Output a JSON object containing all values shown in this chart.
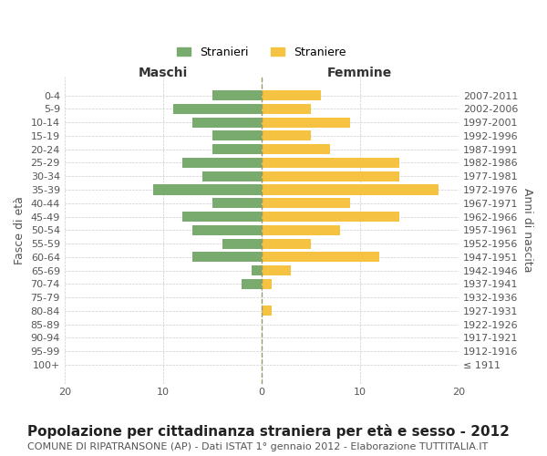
{
  "age_groups": [
    "100+",
    "95-99",
    "90-94",
    "85-89",
    "80-84",
    "75-79",
    "70-74",
    "65-69",
    "60-64",
    "55-59",
    "50-54",
    "45-49",
    "40-44",
    "35-39",
    "30-34",
    "25-29",
    "20-24",
    "15-19",
    "10-14",
    "5-9",
    "0-4"
  ],
  "birth_years": [
    "≤ 1911",
    "1912-1916",
    "1917-1921",
    "1922-1926",
    "1927-1931",
    "1932-1936",
    "1937-1941",
    "1942-1946",
    "1947-1951",
    "1952-1956",
    "1957-1961",
    "1962-1966",
    "1967-1971",
    "1972-1976",
    "1977-1981",
    "1982-1986",
    "1987-1991",
    "1992-1996",
    "1997-2001",
    "2002-2006",
    "2007-2011"
  ],
  "maschi": [
    0,
    0,
    0,
    0,
    0,
    0,
    2,
    1,
    7,
    4,
    7,
    8,
    5,
    11,
    6,
    8,
    5,
    5,
    7,
    9,
    5
  ],
  "femmine": [
    0,
    0,
    0,
    0,
    1,
    0,
    1,
    3,
    12,
    5,
    8,
    14,
    9,
    18,
    14,
    14,
    7,
    5,
    9,
    5,
    6
  ],
  "maschi_color": "#7aab6e",
  "femmine_color": "#f5c242",
  "title": "Popolazione per cittadinanza straniera per età e sesso - 2012",
  "subtitle": "COMUNE DI RIPATRANSONE (AP) - Dati ISTAT 1° gennaio 2012 - Elaborazione TUTTITALIA.IT",
  "xlabel_left": "Maschi",
  "xlabel_right": "Femmine",
  "ylabel_left": "Fasce di età",
  "ylabel_right": "Anni di nascita",
  "xlim": 20,
  "legend_stranieri": "Stranieri",
  "legend_straniere": "Straniere",
  "background_color": "#ffffff",
  "grid_color": "#cccccc",
  "bar_height": 0.75,
  "title_fontsize": 11,
  "subtitle_fontsize": 8,
  "axis_label_fontsize": 9,
  "tick_fontsize": 8,
  "legend_fontsize": 9
}
